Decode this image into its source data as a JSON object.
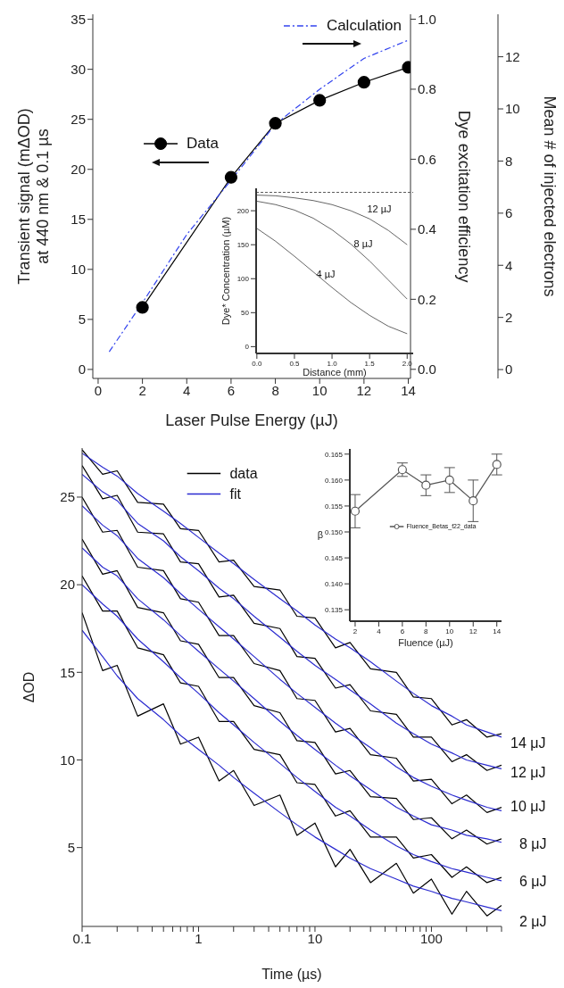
{
  "chart_data": [
    {
      "type": "line",
      "xlabel": "Laser Pulse Energy (µJ)",
      "ylabel": "Transient signal (mΔOD)\nat 440 nm & 0.1 µs",
      "y2label": "Dye excitation efficiency",
      "y3label": "Mean # of injected electrons",
      "xlim": [
        -0.24,
        14.1
      ],
      "xticks": [
        0,
        2,
        4,
        6,
        8,
        10,
        12,
        14
      ],
      "ylim": [
        -0.9,
        35.5
      ],
      "yticks": [
        0,
        5,
        10,
        15,
        20,
        25,
        30,
        35
      ],
      "y2lim": [
        -0.026,
        1.014
      ],
      "y2ticks": [
        {
          "value": 0,
          "label": "0.0"
        },
        {
          "value": 0.2,
          "label": "0.2"
        },
        {
          "value": 0.4,
          "label": "0.4"
        },
        {
          "value": 0.6,
          "label": "0.6"
        },
        {
          "value": 0.8,
          "label": "0.8"
        },
        {
          "value": 1,
          "label": "1.0"
        }
      ],
      "y3lim": [
        -0.34,
        13.63
      ],
      "y3ticks": [
        0,
        2,
        4,
        6,
        8,
        10,
        12
      ],
      "legend": "top right",
      "series": [
        {
          "name": "Data",
          "color": "#000000",
          "marker": "circle",
          "x": [
            2,
            6,
            8,
            10,
            12,
            14
          ],
          "values": [
            6.2,
            19.2,
            24.6,
            26.9,
            28.7,
            30.2
          ]
        },
        {
          "name": "Calculation",
          "color": "#3344ee",
          "axis": "y2",
          "line_style": "dashed",
          "marker": "none",
          "x": [
            0.5,
            2,
            4,
            6,
            8,
            10,
            12,
            14
          ],
          "values": [
            0.05,
            0.19,
            0.385,
            0.54,
            0.7,
            0.8,
            0.888,
            0.94
          ]
        }
      ]
    },
    {
      "type": "line",
      "xlabel": "Distance (mm)",
      "ylabel": "Dye* Concentration (µM)",
      "xlim": [
        -0.01,
        2.08
      ],
      "xticks": [
        {
          "value": 0,
          "label": "0.0"
        },
        {
          "value": 0.5,
          "label": "0.5"
        },
        {
          "value": 1,
          "label": "1.0"
        },
        {
          "value": 1.5,
          "label": "1.5"
        },
        {
          "value": 2,
          "label": "2.0"
        }
      ],
      "ylim": [
        -10,
        233
      ],
      "yticks": [
        0,
        50,
        100,
        150,
        200
      ],
      "x": [
        0,
        0.25,
        0.5,
        0.75,
        1,
        1.25,
        1.5,
        1.75,
        2
      ],
      "ref_lines": [
        {
          "axis": "y",
          "value": 227,
          "color": "#555555",
          "line_style": "dashed"
        }
      ],
      "annotations": [
        "12 µJ",
        "8 µJ",
        "4 µJ"
      ],
      "series": [
        {
          "color": "#666666",
          "values": [
            223,
            222,
            219,
            215,
            209,
            200,
            188,
            171,
            150
          ]
        },
        {
          "color": "#666666",
          "values": [
            214,
            209,
            201,
            189,
            172,
            151,
            126,
            98,
            70
          ]
        },
        {
          "color": "#666666",
          "values": [
            174,
            155,
            133,
            110,
            87,
            65,
            46,
            30,
            19
          ]
        }
      ]
    },
    {
      "type": "line",
      "xlabel": "Time (µs)",
      "ylabel": "ΔOD",
      "log": "x",
      "xlim": [
        0.1,
        400
      ],
      "xticks": [
        0.1,
        {
          "value": 0.2,
          "label": null
        },
        {
          "value": 0.3,
          "label": null
        },
        {
          "value": 0.4,
          "label": null
        },
        {
          "value": 0.5,
          "label": null
        },
        {
          "value": 0.6,
          "label": null
        },
        {
          "value": 0.7,
          "label": null
        },
        {
          "value": 0.8,
          "label": null
        },
        {
          "value": 0.9,
          "label": null
        },
        1,
        {
          "value": 2,
          "label": null
        },
        {
          "value": 3,
          "label": null
        },
        {
          "value": 4,
          "label": null
        },
        {
          "value": 5,
          "label": null
        },
        {
          "value": 6,
          "label": null
        },
        {
          "value": 7,
          "label": null
        },
        {
          "value": 8,
          "label": null
        },
        {
          "value": 9,
          "label": null
        },
        10,
        {
          "value": 20,
          "label": null
        },
        {
          "value": 30,
          "label": null
        },
        {
          "value": 40,
          "label": null
        },
        {
          "value": 50,
          "label": null
        },
        {
          "value": 60,
          "label": null
        },
        {
          "value": 70,
          "label": null
        },
        {
          "value": 80,
          "label": null
        },
        {
          "value": 90,
          "label": null
        },
        100,
        {
          "value": 200,
          "label": null
        },
        {
          "value": 300,
          "label": null
        },
        {
          "value": 400,
          "label": null
        }
      ],
      "ylim": [
        0.5,
        27.8
      ],
      "yticks": [
        5,
        10,
        15,
        20,
        25
      ],
      "legend": "top",
      "x": [
        0.1,
        0.15,
        0.2,
        0.3,
        0.5,
        0.7,
        1,
        1.5,
        2,
        3,
        5,
        7,
        10,
        15,
        20,
        30,
        50,
        70,
        100,
        150,
        200,
        300,
        400
      ],
      "annotations": [
        "14 μJ",
        "12 μJ",
        "10 μJ",
        "8 μJ",
        "6 μJ",
        "2 μJ"
      ],
      "series": [
        {
          "name": "data",
          "color": "#000000",
          "values": [
            27.7,
            26.3,
            26.5,
            24.7,
            24.6,
            23.2,
            23.1,
            21.3,
            21.4,
            19.9,
            19.7,
            18.2,
            18.1,
            16.4,
            16.7,
            15.2,
            15.0,
            13.6,
            13.5,
            12.0,
            12.3,
            11.3,
            11.5
          ]
        },
        {
          "color": "#000000",
          "values": [
            26.8,
            24.9,
            25.1,
            23.0,
            22.9,
            21.3,
            21.2,
            19.3,
            19.4,
            17.8,
            17.5,
            15.9,
            15.8,
            14.1,
            14.3,
            12.8,
            12.6,
            11.3,
            11.3,
            9.9,
            10.3,
            9.4,
            9.7
          ]
        },
        {
          "color": "#000000",
          "values": [
            25.0,
            23.0,
            23.1,
            21.0,
            20.8,
            19.2,
            19.0,
            17.1,
            17.1,
            15.5,
            15.1,
            13.5,
            13.4,
            11.6,
            11.8,
            10.3,
            10.1,
            8.8,
            8.9,
            7.5,
            8.0,
            7.0,
            7.3
          ]
        },
        {
          "color": "#000000",
          "values": [
            22.6,
            20.6,
            20.8,
            18.7,
            18.4,
            16.8,
            16.6,
            14.7,
            14.7,
            13.1,
            12.7,
            11.1,
            11.0,
            9.2,
            9.4,
            7.9,
            7.8,
            6.6,
            6.7,
            5.5,
            6.0,
            5.2,
            5.5
          ]
        },
        {
          "color": "#000000",
          "values": [
            20.5,
            18.5,
            18.5,
            16.4,
            16.0,
            14.4,
            14.2,
            12.2,
            12.2,
            10.6,
            10.3,
            8.7,
            8.6,
            6.8,
            7.1,
            5.6,
            5.6,
            4.4,
            4.6,
            3.3,
            3.9,
            3.0,
            3.3
          ]
        },
        {
          "color": "#000000",
          "values": [
            18.4,
            15.1,
            15.4,
            12.5,
            13.2,
            10.9,
            11.3,
            8.8,
            9.4,
            7.4,
            8.0,
            5.7,
            6.4,
            3.9,
            4.9,
            3.0,
            4.1,
            2.4,
            3.2,
            1.2,
            2.5,
            1.1,
            1.7
          ]
        },
        {
          "name": "fit",
          "color": "#2b2bd0",
          "values": [
            27.5,
            26.7,
            26.2,
            25.2,
            24.2,
            23.5,
            22.7,
            21.8,
            21.2,
            20.3,
            19.2,
            18.5,
            17.7,
            16.9,
            16.4,
            15.6,
            14.5,
            13.8,
            13.1,
            12.5,
            12.0,
            11.6,
            11.3
          ]
        },
        {
          "color": "#2b2bd0",
          "values": [
            26.3,
            25.3,
            24.8,
            23.5,
            22.5,
            21.6,
            20.8,
            19.8,
            19.2,
            18.2,
            17.0,
            16.2,
            15.4,
            14.6,
            14.0,
            13.2,
            12.1,
            11.5,
            10.9,
            10.4,
            10.0,
            9.7,
            9.5
          ]
        },
        {
          "color": "#2b2bd0",
          "values": [
            24.5,
            23.4,
            22.8,
            21.5,
            20.4,
            19.5,
            18.6,
            17.6,
            16.9,
            15.9,
            14.6,
            13.8,
            13.0,
            12.1,
            11.5,
            10.7,
            9.6,
            9.0,
            8.5,
            8.0,
            7.7,
            7.3,
            7.1
          ]
        },
        {
          "color": "#2b2bd0",
          "values": [
            22.1,
            21.0,
            20.5,
            19.2,
            18.0,
            17.1,
            16.2,
            15.2,
            14.5,
            13.5,
            12.2,
            11.4,
            10.6,
            9.7,
            9.1,
            8.3,
            7.3,
            6.8,
            6.3,
            6.0,
            5.7,
            5.5,
            5.3
          ]
        },
        {
          "color": "#2b2bd0",
          "values": [
            20.0,
            18.9,
            18.2,
            16.9,
            15.6,
            14.7,
            13.8,
            12.7,
            12.0,
            11.0,
            9.8,
            9.0,
            8.2,
            7.3,
            6.8,
            6.0,
            5.1,
            4.6,
            4.2,
            3.8,
            3.6,
            3.3,
            3.1
          ]
        },
        {
          "color": "#2b2bd0",
          "values": [
            17.4,
            15.9,
            14.8,
            13.5,
            12.3,
            11.4,
            10.6,
            9.7,
            9.0,
            8.1,
            7.0,
            6.3,
            5.6,
            4.9,
            4.4,
            3.8,
            3.2,
            2.8,
            2.5,
            2.1,
            1.9,
            1.6,
            1.4
          ]
        }
      ]
    },
    {
      "type": "line",
      "xlabel": "Fluence (µJ)",
      "ylabel": "β",
      "xlim": [
        1.55,
        14.4
      ],
      "xticks": [
        2,
        4,
        6,
        8,
        10,
        12,
        14
      ],
      "ylim": [
        0.1328,
        0.166
      ],
      "yticks": [
        0.135,
        {
          "value": 0.14,
          "label": "0.140"
        },
        0.145,
        {
          "value": 0.15,
          "label": "0.150"
        },
        0.155,
        {
          "value": 0.16,
          "label": "0.160"
        },
        0.165
      ],
      "legend": "center",
      "series": [
        {
          "name": "Fluence_Betas_f22_data",
          "color": "#555555",
          "marker": "circle",
          "x": [
            2,
            6,
            8,
            10,
            12,
            14
          ],
          "values": [
            0.154,
            0.162,
            0.159,
            0.16,
            0.156,
            0.163
          ],
          "errors": [
            0.0032,
            0.0013,
            0.002,
            0.0024,
            0.004,
            0.002
          ]
        }
      ]
    }
  ]
}
